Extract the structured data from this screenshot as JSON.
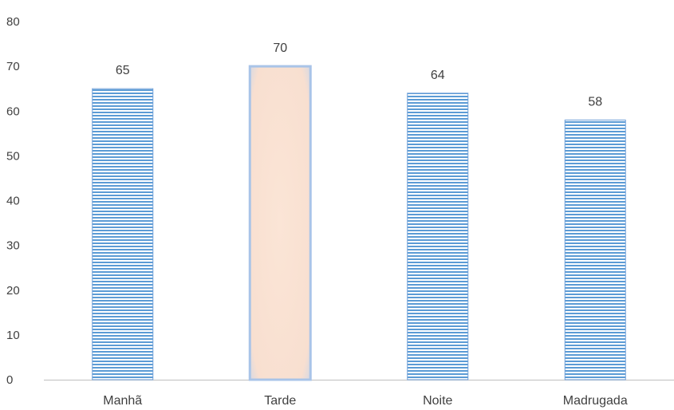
{
  "chart_data": {
    "type": "bar",
    "title": "",
    "xlabel": "",
    "ylabel": "",
    "categories": [
      "Manhã",
      "Tarde",
      "Noite",
      "Madrugada"
    ],
    "values": [
      65,
      70,
      64,
      58
    ],
    "data_labels": [
      "65",
      "70",
      "64",
      "58"
    ],
    "ylim": [
      0,
      80
    ],
    "yticks": [
      "0",
      "10",
      "20",
      "30",
      "40",
      "50",
      "60",
      "70",
      "80"
    ],
    "grid": false,
    "legend": "none",
    "highlight_index": 1,
    "colors": {
      "bar_fill": "#5b9bd5",
      "bar_stripe": "#ffffff",
      "bar_border": "#6f9fd8",
      "highlight_fill": "#fbe5d6",
      "highlight_border": "#a9c4e8",
      "axis": "#bfbfbf",
      "text": "#404040"
    }
  }
}
